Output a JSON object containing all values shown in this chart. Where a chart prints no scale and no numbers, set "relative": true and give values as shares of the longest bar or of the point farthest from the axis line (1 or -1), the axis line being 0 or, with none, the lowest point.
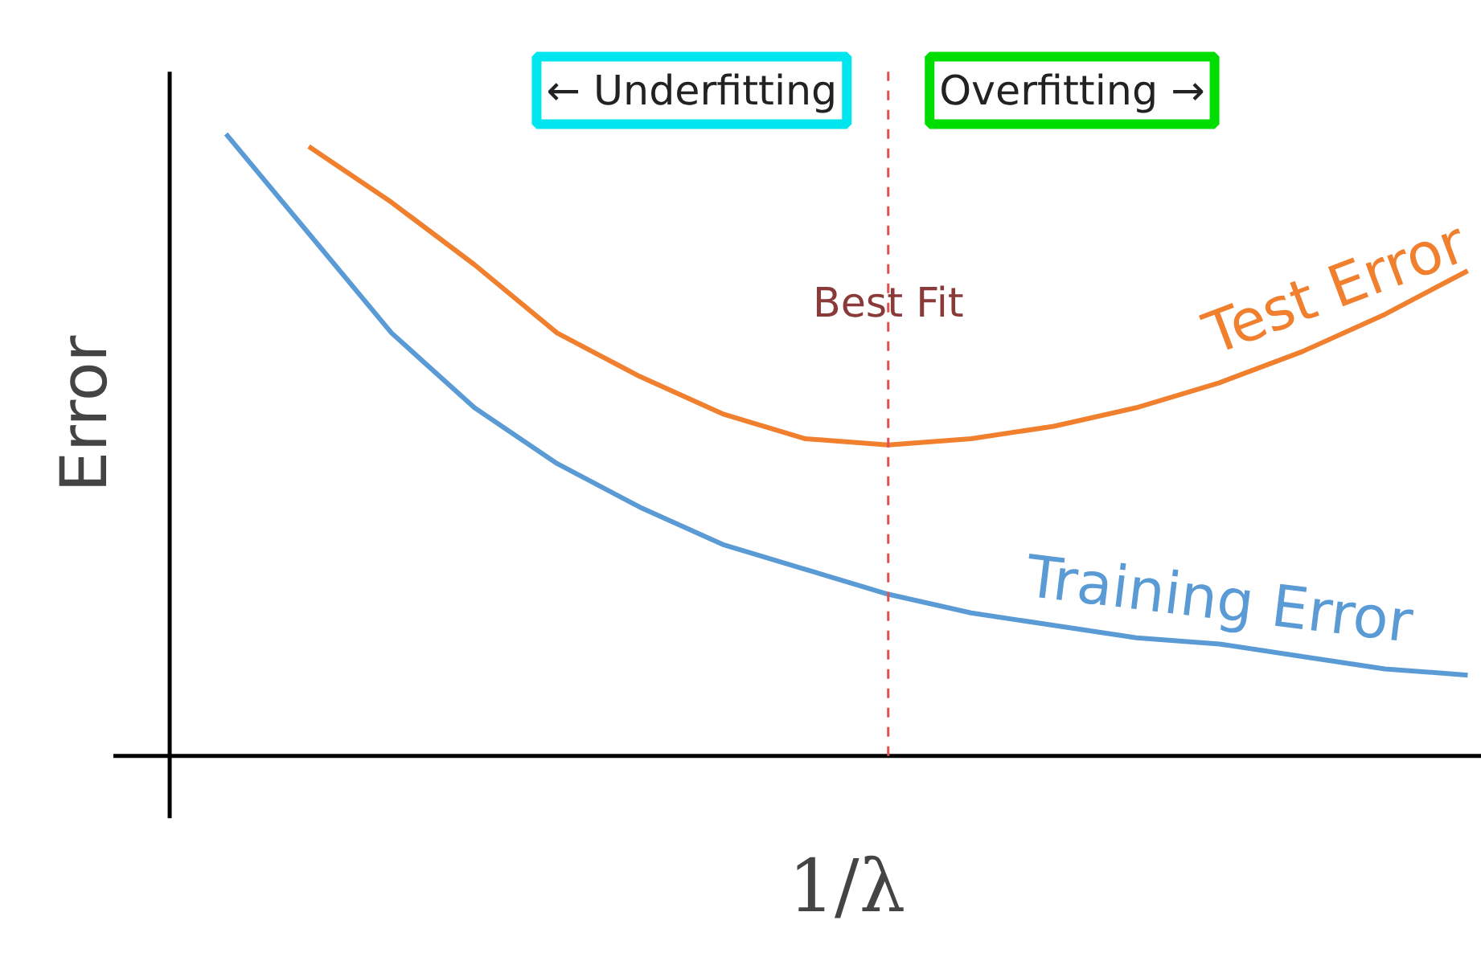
{
  "chart_data": {
    "type": "line",
    "relative": true,
    "xlabel": "1/λ",
    "ylabel": "Error",
    "categories": [
      null,
      null,
      null,
      null,
      null,
      null,
      null,
      null,
      null,
      null,
      null,
      null,
      null,
      null,
      null,
      null
    ],
    "series": [
      {
        "name": "Test Error",
        "color": "#f07f2e",
        "values": [
          null,
          0.98,
          0.89,
          0.79,
          0.68,
          0.61,
          0.55,
          0.51,
          0.5,
          0.51,
          0.53,
          0.56,
          0.6,
          0.65,
          0.71,
          0.78
        ]
      },
      {
        "name": "Training Error",
        "color": "#5b9bd5",
        "values": [
          1,
          0.84,
          0.68,
          0.56,
          0.47,
          0.4,
          0.34,
          0.3,
          0.26,
          0.23,
          0.21,
          0.19,
          0.18,
          0.16,
          0.14,
          0.13
        ]
      }
    ],
    "annotations": [
      "← Underfitting",
      "Overfitting →",
      "Best Fit"
    ],
    "grid": false,
    "tick_labels": false,
    "marker": "none",
    "line_style": "solid"
  }
}
